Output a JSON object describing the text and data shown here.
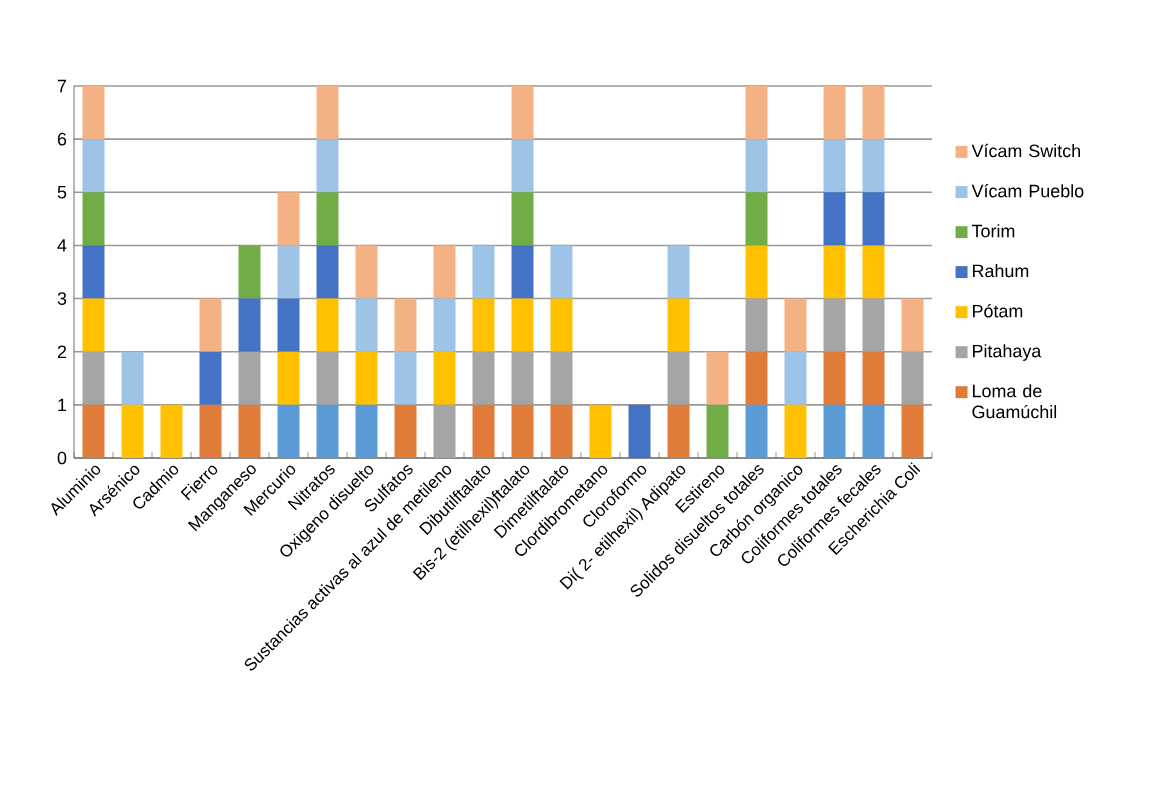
{
  "chart_data": {
    "type": "bar",
    "stacked": true,
    "categories": [
      "Aluminio",
      "Arsénico",
      "Cadmio",
      "Fierro",
      "Manganeso",
      "Mercurio",
      "Nitratos",
      "Oxigeno disuelto",
      "Sulfatos",
      "Sustancias activas al azul de metileno",
      "Dibutilftalato",
      "Bis-2 (etilhexil)ftalato",
      "Dimetilftalato",
      "Clordibrometano",
      "Cloroformo",
      "Di( 2- etilhexil) Adipato",
      "Estireno",
      "Solidos disueltos totales",
      "Carbón organico",
      "Coliformes totales",
      "Coliformes fecales",
      "Escherichia Coli"
    ],
    "series": [
      {
        "color": "#5b9bd5",
        "values": [
          0,
          0,
          0,
          0,
          0,
          1,
          1,
          1,
          0,
          0,
          0,
          0,
          0,
          0,
          0,
          0,
          0,
          1,
          0,
          1,
          1,
          0
        ]
      },
      {
        "name": "Loma de Guamúchil",
        "color": "#e07b39",
        "values": [
          1,
          0,
          0,
          1,
          1,
          0,
          0,
          0,
          1,
          0,
          1,
          1,
          1,
          0,
          0,
          1,
          0,
          1,
          0,
          1,
          1,
          1
        ]
      },
      {
        "name": "Pitahaya",
        "color": "#a5a5a5",
        "values": [
          1,
          0,
          0,
          0,
          1,
          0,
          1,
          0,
          0,
          1,
          1,
          1,
          1,
          0,
          0,
          1,
          0,
          1,
          0,
          1,
          1,
          1
        ]
      },
      {
        "name": "Pótam",
        "color": "#ffc000",
        "values": [
          1,
          1,
          1,
          0,
          0,
          1,
          1,
          1,
          0,
          1,
          1,
          1,
          1,
          1,
          0,
          1,
          0,
          1,
          1,
          1,
          1,
          0
        ]
      },
      {
        "name": "Rahum",
        "color": "#4472c4",
        "values": [
          1,
          0,
          0,
          1,
          1,
          1,
          1,
          0,
          0,
          0,
          0,
          1,
          0,
          0,
          1,
          0,
          0,
          0,
          0,
          1,
          1,
          0
        ]
      },
      {
        "name": "Torim",
        "color": "#70ad47",
        "values": [
          1,
          0,
          0,
          0,
          1,
          0,
          1,
          0,
          0,
          0,
          0,
          1,
          0,
          0,
          0,
          0,
          1,
          1,
          0,
          0,
          0,
          0
        ]
      },
      {
        "name": "Vícam Pueblo",
        "color": "#9dc3e6",
        "values": [
          1,
          1,
          0,
          0,
          0,
          1,
          1,
          1,
          1,
          1,
          1,
          1,
          1,
          0,
          0,
          1,
          0,
          1,
          1,
          1,
          1,
          0
        ]
      },
      {
        "name": "Vícam Switch",
        "color": "#f4b183",
        "values": [
          1,
          0,
          0,
          1,
          0,
          1,
          1,
          1,
          1,
          1,
          0,
          1,
          0,
          0,
          0,
          0,
          1,
          1,
          1,
          1,
          1,
          1
        ]
      }
    ],
    "ylim": [
      0,
      7
    ],
    "yticks": [
      0,
      1,
      2,
      3,
      4,
      5,
      6,
      7
    ],
    "grid": "y",
    "legend": "right"
  }
}
